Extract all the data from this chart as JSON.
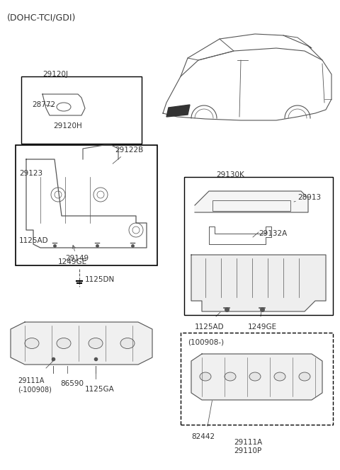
{
  "title": "(DOHC-TCI/GDI)",
  "bg_color": "#ffffff",
  "line_color": "#555555",
  "text_color": "#333333",
  "box_color": "#000000",
  "labels": {
    "top_left": "29120J",
    "box1_label1": "28772",
    "box1_label2": "29120H",
    "box2_label1": "29123",
    "box2_label2": "29122B",
    "box2_label3": "1125AD",
    "box2_label4": "29149",
    "box2_label5": "1249GE",
    "bottom_left_part": "29111A\n(-100908)",
    "bottom_left_screw1": "86590",
    "bottom_left_screw2": "1125GA",
    "connector": "1125DN",
    "right_box_label": "29130K",
    "right_part1": "28913",
    "right_part2": "29132A",
    "right_screw1": "1125AD",
    "right_screw2": "1249GE",
    "dashed_box_label": "(100908-)",
    "dashed_part1": "82442",
    "dashed_part2": "29111A\n29110P"
  }
}
